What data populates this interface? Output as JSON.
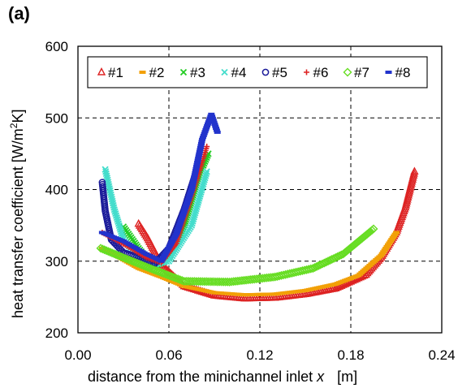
{
  "panel_label": "(a)",
  "chart_data": {
    "type": "scatter",
    "xlabel": "distance from the minichannel inlet x    [m]",
    "xlabel_parts": {
      "text": "distance from the minichannel inlet ",
      "var": "x",
      "unit": "[m]"
    },
    "ylabel": "heat transfer coefficient [W/m2K]",
    "ylabel_parts": {
      "text": "heat transfer coefficient [W/m",
      "sup": "2",
      "end": "K]"
    },
    "xlim": [
      0.0,
      0.24
    ],
    "ylim": [
      200,
      600
    ],
    "x_ticks": [
      "0.00",
      "0.06",
      "0.12",
      "0.18",
      "0.24"
    ],
    "x_tick_values": [
      0.0,
      0.06,
      0.12,
      0.18,
      0.24
    ],
    "y_ticks": [
      "200",
      "300",
      "400",
      "500",
      "600"
    ],
    "y_tick_values": [
      200,
      300,
      400,
      500,
      600
    ],
    "grid": true,
    "legend_position": "top",
    "series": [
      {
        "name": "#1",
        "marker": "triangle",
        "color": "#dd2222",
        "x": [
          0.04,
          0.046,
          0.055,
          0.07,
          0.09,
          0.11,
          0.13,
          0.15,
          0.17,
          0.19,
          0.2,
          0.21,
          0.216,
          0.222
        ],
        "y": [
          352,
          332,
          295,
          265,
          252,
          248,
          249,
          254,
          262,
          281,
          305,
          340,
          375,
          425
        ]
      },
      {
        "name": "#2",
        "marker": "dash",
        "color": "#f2a007",
        "x": [
          0.016,
          0.025,
          0.04,
          0.055,
          0.07,
          0.09,
          0.11,
          0.13,
          0.15,
          0.17,
          0.185,
          0.2,
          0.21
        ],
        "y": [
          318,
          308,
          290,
          278,
          265,
          256,
          253,
          254,
          259,
          268,
          280,
          308,
          340
        ]
      },
      {
        "name": "#3",
        "marker": "x",
        "color": "#22cc22",
        "x": [
          0.03,
          0.04,
          0.05,
          0.06,
          0.07,
          0.08,
          0.086
        ],
        "y": [
          348,
          318,
          292,
          305,
          350,
          420,
          450
        ]
      },
      {
        "name": "#4",
        "marker": "x",
        "color": "#44ddcc",
        "x": [
          0.018,
          0.024,
          0.03,
          0.04,
          0.05,
          0.06,
          0.075,
          0.085
        ],
        "y": [
          428,
          372,
          330,
          305,
          295,
          300,
          350,
          425
        ]
      },
      {
        "name": "#5",
        "marker": "circle",
        "color": "#1a1a99",
        "x": [
          0.016,
          0.018,
          0.022,
          0.03,
          0.04,
          0.05,
          0.06,
          0.07,
          0.078
        ],
        "y": [
          410,
          370,
          330,
          312,
          305,
          295,
          318,
          372,
          425
        ]
      },
      {
        "name": "#6",
        "marker": "plus",
        "color": "#dd2222",
        "x": [
          0.016,
          0.025,
          0.035,
          0.045,
          0.055,
          0.065,
          0.075,
          0.085
        ],
        "y": [
          340,
          330,
          318,
          305,
          298,
          325,
          390,
          460
        ]
      },
      {
        "name": "#7",
        "marker": "diamond",
        "color": "#66dd22",
        "x": [
          0.015,
          0.03,
          0.05,
          0.07,
          0.1,
          0.13,
          0.155,
          0.175,
          0.195
        ],
        "y": [
          318,
          305,
          288,
          272,
          271,
          278,
          290,
          310,
          345
        ]
      },
      {
        "name": "#8",
        "marker": "dash",
        "color": "#2233cc",
        "x": [
          0.016,
          0.03,
          0.045,
          0.055,
          0.065,
          0.075,
          0.082,
          0.088,
          0.092
        ],
        "y": [
          340,
          328,
          310,
          300,
          338,
          400,
          470,
          505,
          480
        ]
      }
    ]
  }
}
